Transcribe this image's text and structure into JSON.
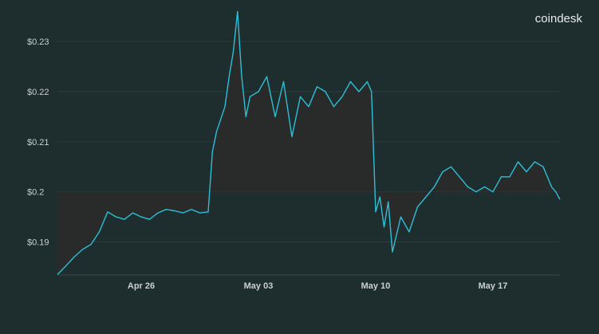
{
  "brand": "coindesk",
  "colors": {
    "background": "#1e2d2d",
    "line": "#2bc0d8",
    "area": "#2b2b2b",
    "grid": "#2c3d3d",
    "text": "#c9d0d0"
  },
  "chart_data": {
    "type": "area",
    "title": "",
    "xlabel": "",
    "ylabel": "",
    "y_tick_labels": [
      "$0.19",
      "$0.2",
      "$0.21",
      "$0.22",
      "$0.23"
    ],
    "y_ticks": [
      0.19,
      0.2,
      0.21,
      0.22,
      0.23
    ],
    "x_tick_labels": [
      "Apr 26",
      "May 03",
      "May 10",
      "May 17"
    ],
    "x_ticks": [
      "2021-04-26",
      "2021-05-03",
      "2021-05-10",
      "2021-05-17"
    ],
    "xlim": [
      "2021-04-21",
      "2021-05-21"
    ],
    "ylim": [
      0.1834,
      0.2367
    ],
    "grid": true,
    "legend": "none",
    "series": [
      {
        "x": [
          "2021-04-21T00:00",
          "2021-04-21T12:00",
          "2021-04-22T00:00",
          "2021-04-22T12:00",
          "2021-04-23T00:00",
          "2021-04-23T12:00",
          "2021-04-24T00:00",
          "2021-04-24T12:00",
          "2021-04-25T00:00",
          "2021-04-25T12:00",
          "2021-04-26T00:00",
          "2021-04-26T12:00",
          "2021-04-27T00:00",
          "2021-04-27T12:00",
          "2021-04-28T00:00",
          "2021-04-28T12:00",
          "2021-04-29T00:00",
          "2021-04-29T12:00",
          "2021-04-30T00:00",
          "2021-04-30T06:00",
          "2021-04-30T12:00",
          "2021-05-01T00:00",
          "2021-05-01T06:00",
          "2021-05-01T12:00",
          "2021-05-01T18:00",
          "2021-05-02T00:00",
          "2021-05-02T06:00",
          "2021-05-02T12:00",
          "2021-05-03T00:00",
          "2021-05-03T12:00",
          "2021-05-04T00:00",
          "2021-05-04T12:00",
          "2021-05-05T00:00",
          "2021-05-05T12:00",
          "2021-05-06T00:00",
          "2021-05-06T12:00",
          "2021-05-07T00:00",
          "2021-05-07T12:00",
          "2021-05-08T00:00",
          "2021-05-08T12:00",
          "2021-05-09T00:00",
          "2021-05-09T12:00",
          "2021-05-09T18:00",
          "2021-05-10T00:00",
          "2021-05-10T06:00",
          "2021-05-10T12:00",
          "2021-05-10T18:00",
          "2021-05-11T00:00",
          "2021-05-11T12:00",
          "2021-05-12T00:00",
          "2021-05-12T12:00",
          "2021-05-13T00:00",
          "2021-05-13T12:00",
          "2021-05-14T00:00",
          "2021-05-14T12:00",
          "2021-05-15T00:00",
          "2021-05-15T12:00",
          "2021-05-16T00:00",
          "2021-05-16T12:00",
          "2021-05-17T00:00",
          "2021-05-17T12:00",
          "2021-05-18T00:00",
          "2021-05-18T12:00",
          "2021-05-19T00:00",
          "2021-05-19T12:00",
          "2021-05-20T00:00",
          "2021-05-20T12:00",
          "2021-05-20T18:00",
          "2021-05-21T00:00"
        ],
        "values": [
          0.1835,
          0.1852,
          0.187,
          0.1885,
          0.1895,
          0.192,
          0.196,
          0.195,
          0.1945,
          0.1958,
          0.195,
          0.1945,
          0.1958,
          0.1965,
          0.1962,
          0.1958,
          0.1965,
          0.1958,
          0.196,
          0.208,
          0.212,
          0.217,
          0.223,
          0.228,
          0.236,
          0.223,
          0.215,
          0.219,
          0.22,
          0.223,
          0.215,
          0.222,
          0.211,
          0.219,
          0.217,
          0.221,
          0.22,
          0.217,
          0.219,
          0.222,
          0.22,
          0.222,
          0.22,
          0.196,
          0.199,
          0.193,
          0.198,
          0.188,
          0.195,
          0.192,
          0.197,
          0.199,
          0.201,
          0.204,
          0.205,
          0.203,
          0.201,
          0.2,
          0.201,
          0.2,
          0.203,
          0.203,
          0.206,
          0.204,
          0.206,
          0.205,
          0.201,
          0.2,
          0.1985
        ]
      }
    ]
  }
}
